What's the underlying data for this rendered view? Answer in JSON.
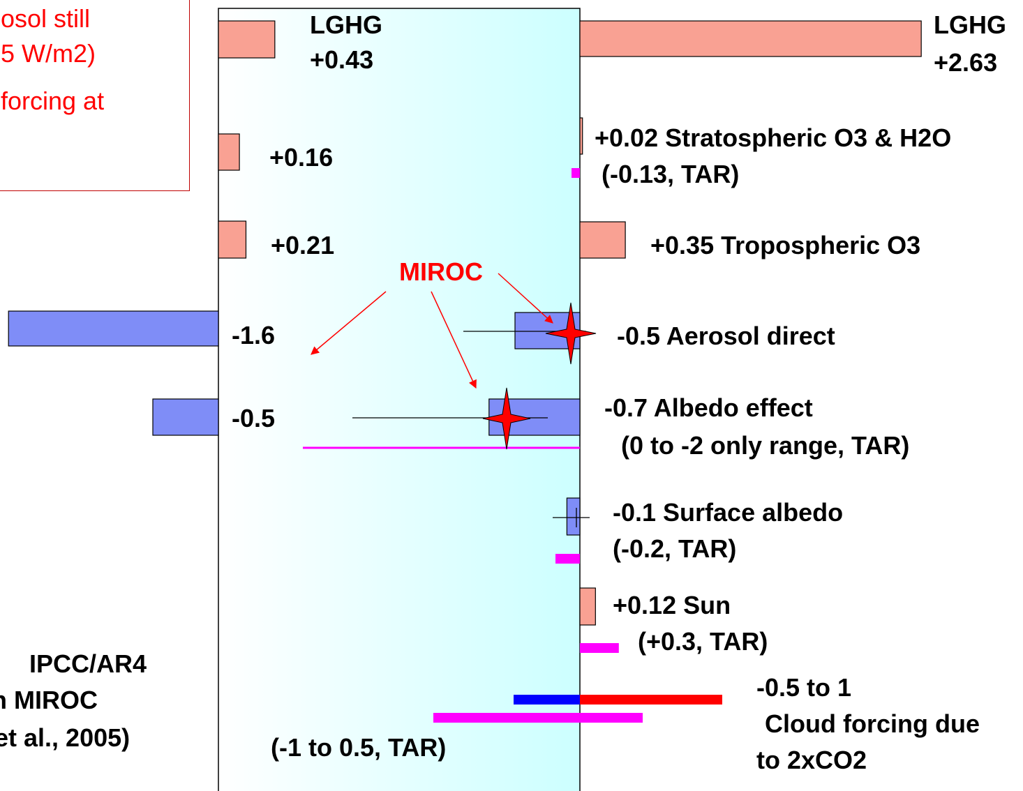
{
  "note_box": {
    "line1": "osol still",
    "line2": "5 W/m2)",
    "line3": "forcing at"
  },
  "caption": {
    "line1": "IPCC/AR4",
    "line2": "n MIROC",
    "line3": "et al., 2005)"
  },
  "miroc_label": "MIROC",
  "colors": {
    "positive_bar": "#f9a193",
    "negative_bar": "#7f8df7",
    "tar": "#ff00ff",
    "cloud_negative": "#0000ff",
    "cloud_positive": "#ff0000",
    "star": "#ff0000",
    "panel_gradient": [
      "#ffffff",
      "#ccffff"
    ]
  },
  "chart_data": [
    {
      "type": "bar",
      "panel": "left",
      "categories": [
        "LGHG",
        "Stratospheric O3 & H2O",
        "Tropospheric O3",
        "Aerosol direct",
        "Albedo effect"
      ],
      "values": [
        0.43,
        0.16,
        0.21,
        -1.6,
        -0.5
      ],
      "labels": [
        {
          "line1": "LGHG",
          "line2": "+0.43"
        },
        {
          "line1": "+0.16"
        },
        {
          "line1": "+0.21"
        },
        {
          "line1": "-1.6"
        },
        {
          "line1": "-0.5"
        }
      ],
      "tar_reference": {
        "label": "(-1 to 0.5, TAR)",
        "range": [
          -1,
          0.5
        ]
      }
    },
    {
      "type": "bar",
      "panel": "right",
      "categories": [
        "LGHG",
        "Stratospheric O3 & H2O",
        "Tropospheric O3",
        "Aerosol direct",
        "Albedo effect",
        "Surface albedo",
        "Sun",
        "Cloud forcing"
      ],
      "values": [
        2.63,
        0.02,
        0.35,
        -0.5,
        -0.7,
        -0.1,
        0.12,
        null
      ],
      "tar_values": [
        null,
        -0.13,
        null,
        null,
        -2,
        -0.2,
        0.3,
        null
      ],
      "cloud_range": [
        -0.5,
        1
      ],
      "labels": [
        {
          "line1": "LGHG",
          "line2": "+2.63"
        },
        {
          "line1": "+0.02 Stratospheric O3 & H2O",
          "line2": "(-0.13, TAR)"
        },
        {
          "line1": "+0.35 Tropospheric O3"
        },
        {
          "line1": "-0.5 Aerosol direct"
        },
        {
          "line1": "-0.7 Albedo effect",
          "line2": "(0 to -2 only range, TAR)"
        },
        {
          "line1": "-0.1 Surface albedo",
          "line2": "(-0.2, TAR)"
        },
        {
          "line1": "+0.12 Sun",
          "line2": "(+0.3, TAR)"
        },
        {
          "line1": "-0.5 to 1",
          "line2": "Cloud forcing due",
          "line3": "to 2xCO2"
        }
      ]
    }
  ]
}
